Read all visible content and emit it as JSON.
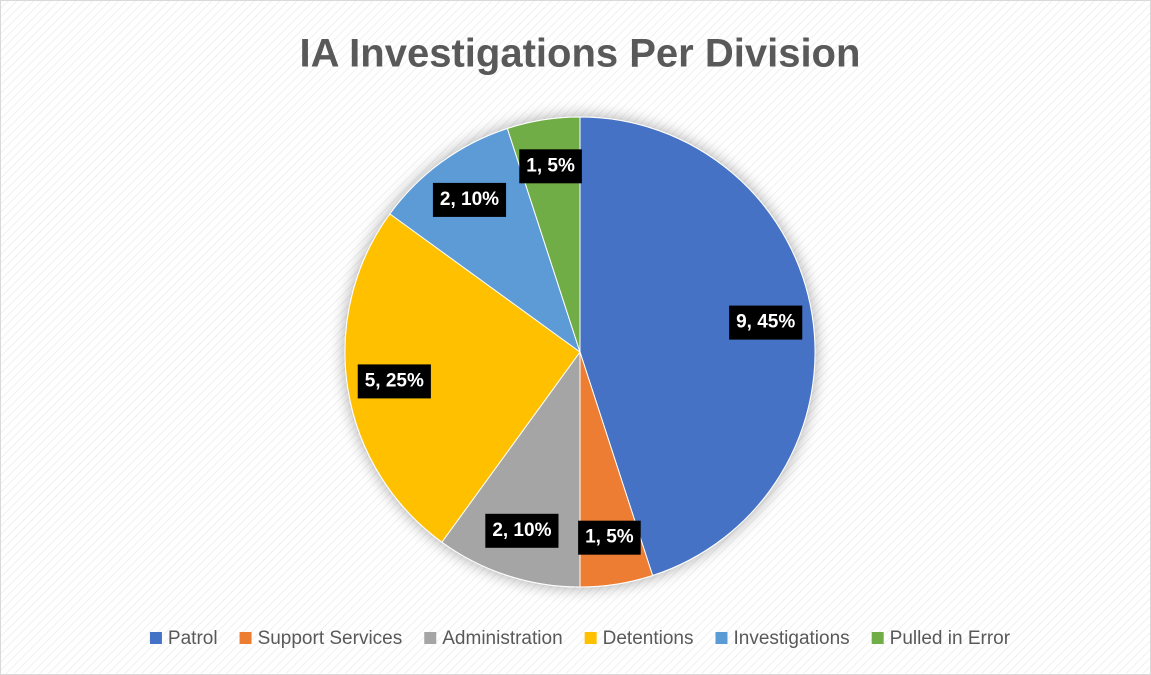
{
  "chart_data": {
    "type": "pie",
    "title": "IA Investigations Per Division",
    "categories": [
      "Patrol",
      "Support Services",
      "Administration",
      "Detentions",
      "Investigations",
      "Pulled in Error"
    ],
    "values": [
      9,
      1,
      2,
      5,
      2,
      1
    ],
    "value_labels": [
      "9, 45%",
      "1, 5%",
      "2, 10%",
      "5, 25%",
      "2, 10%",
      "1, 5%"
    ],
    "colors": [
      "#4472c4",
      "#ed7d31",
      "#a5a5a5",
      "#ffc000",
      "#5b9bd5",
      "#70ad47"
    ],
    "legend": "bottom"
  }
}
